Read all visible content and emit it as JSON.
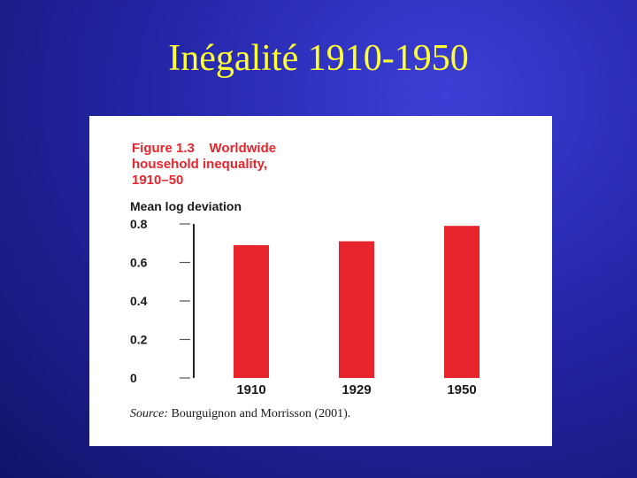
{
  "slide": {
    "title": "Inégalité 1910-1950"
  },
  "figure": {
    "heading_line1": "Figure 1.3    Worldwide",
    "heading_line2": "household inequality,",
    "heading_line3": "1910–50",
    "source_label": "Source:",
    "source_text": " Bourguignon and Morrisson (2001)."
  },
  "chart_data": {
    "type": "bar",
    "title": "Worldwide household inequality, 1910–50",
    "xlabel": "",
    "ylabel": "Mean log deviation",
    "categories": [
      "1910",
      "1929",
      "1950"
    ],
    "values": [
      0.69,
      0.71,
      0.79
    ],
    "ylim": [
      0,
      0.8
    ],
    "yticks": [
      "0",
      "0.2",
      "0.4",
      "0.6",
      "0.8"
    ],
    "grid": false,
    "bar_color": "#e8242c"
  },
  "colors": {
    "background": "#2426a8",
    "title": "#ffff33",
    "accent": "#e8242c"
  }
}
